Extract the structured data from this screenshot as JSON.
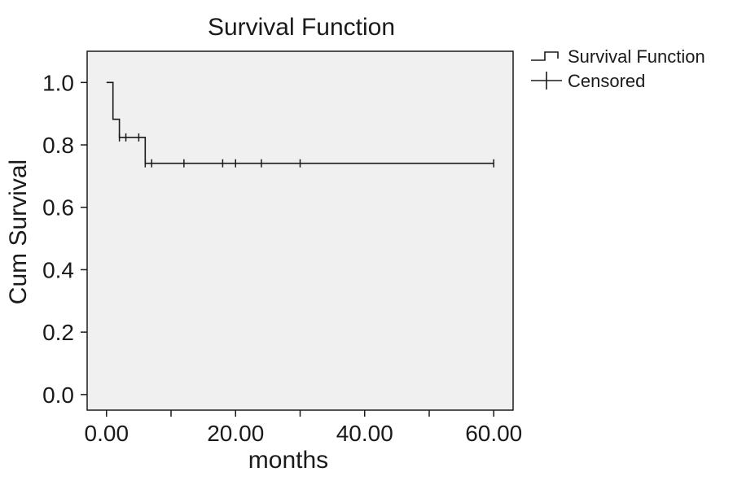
{
  "chart_data": {
    "type": "line",
    "title": "Survival Function",
    "xlabel": "months",
    "ylabel": "Cum Survival",
    "xlim": [
      -3,
      63
    ],
    "ylim": [
      -0.05,
      1.1
    ],
    "xticks": [
      0,
      10,
      20,
      30,
      40,
      50,
      60
    ],
    "xtick_labels": [
      "0.00",
      "",
      "20.00",
      "",
      "40.00",
      "",
      "60.00"
    ],
    "yticks": [
      0.0,
      0.2,
      0.4,
      0.6,
      0.8,
      1.0
    ],
    "ytick_labels": [
      "0.0",
      "0.2",
      "0.4",
      "0.6",
      "0.8",
      "1.0"
    ],
    "grid": false,
    "legend_position": "top-right outside",
    "plot_background": "#f0f0f0",
    "series": [
      {
        "name": "Survival Function",
        "style": "step",
        "x": [
          0,
          1,
          2,
          6,
          60
        ],
        "y": [
          1.0,
          0.882,
          0.824,
          0.741,
          0.741
        ]
      },
      {
        "name": "Censored",
        "style": "marker-plus",
        "x": [
          2,
          3,
          5,
          6,
          7,
          12,
          18,
          20,
          24,
          30,
          60
        ],
        "y": [
          0.824,
          0.824,
          0.824,
          0.741,
          0.741,
          0.741,
          0.741,
          0.741,
          0.741,
          0.741,
          0.741
        ]
      }
    ]
  }
}
